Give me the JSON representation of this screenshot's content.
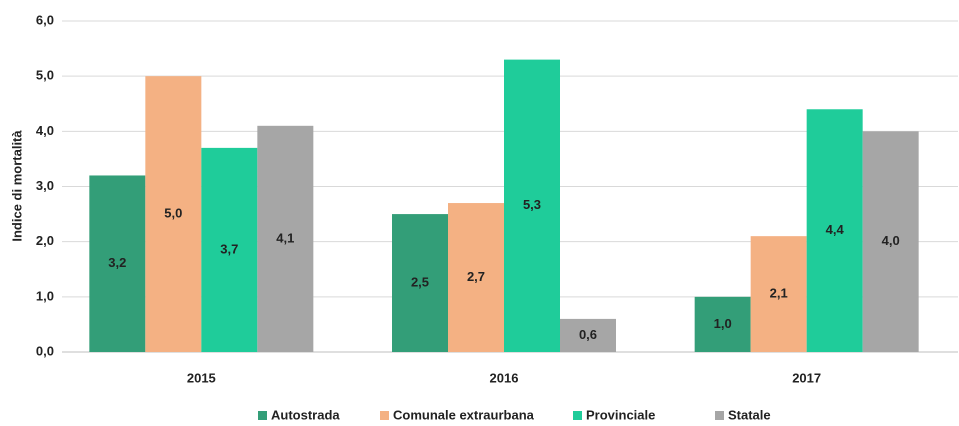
{
  "chart_data": {
    "type": "bar",
    "y_label": "Indice di mortalità",
    "categories": [
      "2015",
      "2016",
      "2017"
    ],
    "series": [
      {
        "name": "Autostrada",
        "color": "#339e78",
        "values": [
          3.2,
          2.5,
          1.0
        ],
        "value_labels": [
          "3,2",
          "2,5",
          "1,0"
        ]
      },
      {
        "name": "Comunale extraurbana",
        "color": "#f4b183",
        "values": [
          5.0,
          2.7,
          2.1
        ],
        "value_labels": [
          "5,0",
          "2,7",
          "2,1"
        ]
      },
      {
        "name": "Provinciale",
        "color": "#1fcc9a",
        "values": [
          3.7,
          5.3,
          4.4
        ],
        "value_labels": [
          "3,7",
          "5,3",
          "4,4"
        ]
      },
      {
        "name": "Statale",
        "color": "#a6a6a6",
        "values": [
          4.1,
          0.6,
          4.0
        ],
        "value_labels": [
          "4,1",
          "0,6",
          "4,0"
        ]
      }
    ],
    "ylim": [
      0,
      6
    ],
    "yticks": [
      {
        "value": 0,
        "label": "0,0"
      },
      {
        "value": 1,
        "label": "1,0"
      },
      {
        "value": 2,
        "label": "2,0"
      },
      {
        "value": 3,
        "label": "3,0"
      },
      {
        "value": 4,
        "label": "4,0"
      },
      {
        "value": 5,
        "label": "5,0"
      },
      {
        "value": 6,
        "label": "6,0"
      }
    ],
    "grid": true,
    "legend": "bottom"
  }
}
